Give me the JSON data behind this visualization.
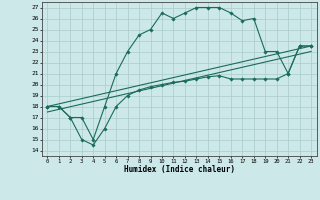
{
  "title": "",
  "xlabel": "Humidex (Indice chaleur)",
  "bg_color": "#cce8e8",
  "grid_color": "#aacccc",
  "line_color": "#1a6b5a",
  "xlim": [
    -0.5,
    23.5
  ],
  "ylim": [
    13.5,
    27.5
  ],
  "yticks": [
    14,
    15,
    16,
    17,
    18,
    19,
    20,
    21,
    22,
    23,
    24,
    25,
    26,
    27
  ],
  "xticks": [
    0,
    1,
    2,
    3,
    4,
    5,
    6,
    7,
    8,
    9,
    10,
    11,
    12,
    13,
    14,
    15,
    16,
    17,
    18,
    19,
    20,
    21,
    22,
    23
  ],
  "line1_x": [
    0,
    1,
    2,
    3,
    4,
    5,
    6,
    7,
    8,
    9,
    10,
    11,
    12,
    13,
    14,
    15,
    16,
    17,
    18,
    19,
    20,
    21,
    22,
    23
  ],
  "line1_y": [
    18,
    18,
    17,
    17,
    15,
    18,
    21,
    23,
    24.5,
    25,
    26.5,
    26,
    26.5,
    27,
    27,
    27,
    26.5,
    25.8,
    26,
    23,
    23,
    21,
    23.5,
    23.5
  ],
  "line2_x": [
    0,
    1,
    2,
    3,
    4,
    5,
    6,
    7,
    8,
    9,
    10,
    11,
    12,
    13,
    14,
    15,
    16,
    17,
    18,
    19,
    20,
    21,
    22,
    23
  ],
  "line2_y": [
    18,
    18,
    17,
    15,
    14.5,
    16,
    18,
    19,
    19.5,
    19.8,
    20,
    20.2,
    20.3,
    20.5,
    20.7,
    20.8,
    20.5,
    20.5,
    20.5,
    20.5,
    20.5,
    21,
    23.5,
    23.5
  ],
  "line3_x": [
    0,
    23
  ],
  "line3_y": [
    18,
    23.5
  ],
  "line4_x": [
    0,
    23
  ],
  "line4_y": [
    17.5,
    23.0
  ]
}
